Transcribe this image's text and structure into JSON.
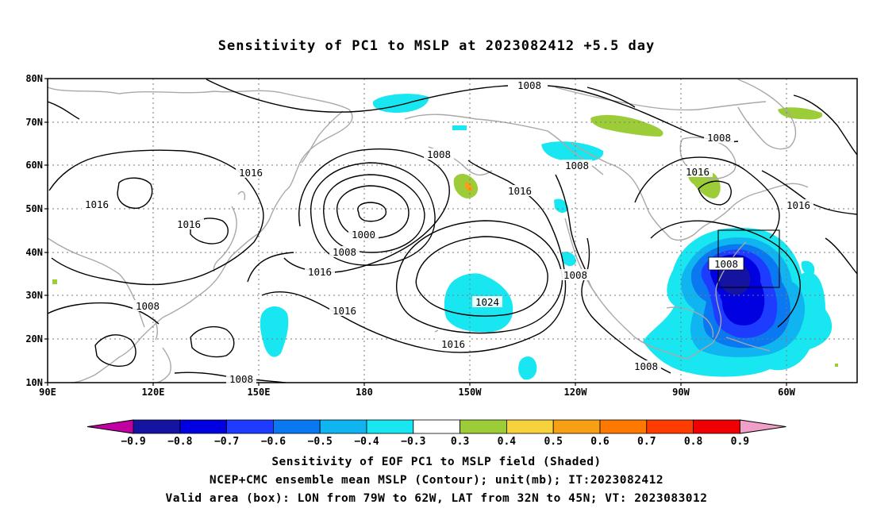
{
  "title": "Sensitivity of PC1 to MSLP at 2023082412 +5.5 day",
  "map": {
    "lat_labels": [
      "80N",
      "70N",
      "60N",
      "50N",
      "40N",
      "30N",
      "20N",
      "10N"
    ],
    "lon_labels": [
      "90E",
      "120E",
      "150E",
      "180",
      "150W",
      "120W",
      "90W",
      "60W"
    ],
    "lon_range": [
      90,
      320
    ],
    "lat_range": [
      10,
      80
    ],
    "grid": "dotted",
    "contour_color": "#000000",
    "coast_color": "#a8a8a8",
    "contour_labels": [
      "1008",
      "1008",
      "1008",
      "1016",
      "1016",
      "1016",
      "1016",
      "1000",
      "1008",
      "1016",
      "1016",
      "1024",
      "1016",
      "1008",
      "1008",
      "1008",
      "1008",
      "1016",
      "1008",
      "1016",
      "1008"
    ],
    "valid_box": {
      "lon_w": -79,
      "lon_e": -62,
      "lat_s": 32,
      "lat_n": 45
    }
  },
  "colorbar": {
    "labels": [
      "−0.9",
      "−0.8",
      "−0.7",
      "−0.6",
      "−0.5",
      "−0.4",
      "−0.3",
      "0.3",
      "0.4",
      "0.5",
      "0.6",
      "0.7",
      "0.8",
      "0.9"
    ],
    "colors": [
      "#c000a0",
      "#1414a0",
      "#0000e0",
      "#1e3cff",
      "#0a78f0",
      "#10b4f0",
      "#18e6f0",
      "#ffffff",
      "#9ccd38",
      "#f8d23c",
      "#f8a014",
      "#ff7800",
      "#ff3c00",
      "#f00000",
      "#f0a0c8"
    ]
  },
  "captions": [
    "Sensitivity of EOF PC1 to MSLP field (Shaded)",
    "NCEP+CMC ensemble mean MSLP (Contour); unit(mb); IT:2023082412",
    "Valid area (box): LON from 79W to 62W, LAT from 32N to 45N; VT: 2023083012"
  ]
}
